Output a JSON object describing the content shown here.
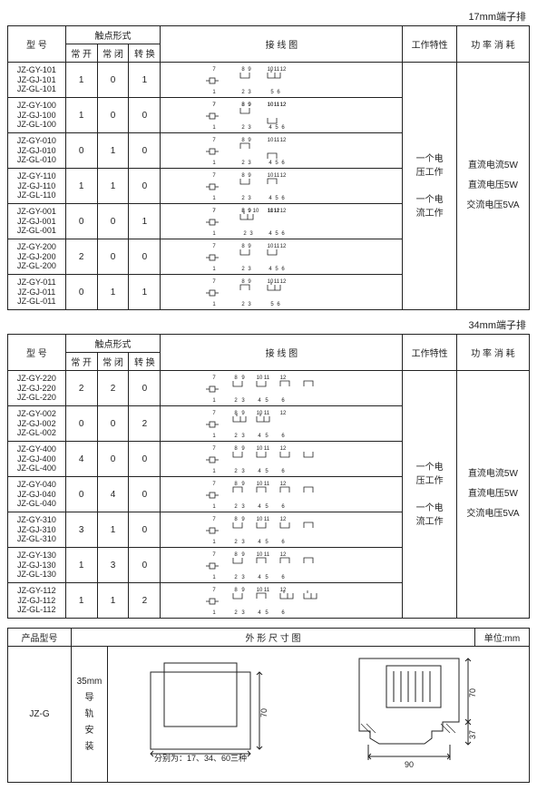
{
  "captions": {
    "top": "17mm端子排",
    "mid": "34mm端子排"
  },
  "headers": {
    "model": "型 号",
    "contact_form": "触点形式",
    "no": "常 开",
    "nc": "常 闭",
    "co": "转 换",
    "wiring": "接  线  图",
    "work": "工作特性",
    "power": "功 率 消 耗"
  },
  "work_char": [
    "一个电",
    "压工作",
    "",
    "一个电",
    "流工作"
  ],
  "power_cons": [
    "直流电流5W",
    "直流电压5W",
    "交流电压5VA"
  ],
  "table1_rows": [
    {
      "models": [
        "JZ-GY-101",
        "JZ-GJ-101",
        "JZ-GL-101"
      ],
      "no": "1",
      "nc": "0",
      "co": "1",
      "diag": "A"
    },
    {
      "models": [
        "JZ-GY-100",
        "JZ-GJ-100",
        "JZ-GL-100"
      ],
      "no": "1",
      "nc": "0",
      "co": "0",
      "diag": "B"
    },
    {
      "models": [
        "JZ-GY-010",
        "JZ-GJ-010",
        "JZ-GL-010"
      ],
      "no": "0",
      "nc": "1",
      "co": "0",
      "diag": "C"
    },
    {
      "models": [
        "JZ-GY-110",
        "JZ-GJ-110",
        "JZ-GL-110"
      ],
      "no": "1",
      "nc": "1",
      "co": "0",
      "diag": "D"
    },
    {
      "models": [
        "JZ-GY-001",
        "JZ-GJ-001",
        "JZ-GL-001"
      ],
      "no": "0",
      "nc": "0",
      "co": "1",
      "diag": "E"
    },
    {
      "models": [
        "JZ-GY-200",
        "JZ-GJ-200",
        "JZ-GL-200"
      ],
      "no": "2",
      "nc": "0",
      "co": "0",
      "diag": "F"
    },
    {
      "models": [
        "JZ-GY-011",
        "JZ-GJ-011",
        "JZ-GL-011"
      ],
      "no": "0",
      "nc": "1",
      "co": "1",
      "diag": "G"
    }
  ],
  "table2_rows": [
    {
      "models": [
        "JZ-GY-220",
        "JZ-GJ-220",
        "JZ-GL-220"
      ],
      "no": "2",
      "nc": "2",
      "co": "0",
      "diag": "H"
    },
    {
      "models": [
        "JZ-GY-002",
        "JZ-GJ-002",
        "JZ-GL-002"
      ],
      "no": "0",
      "nc": "0",
      "co": "2",
      "diag": "I"
    },
    {
      "models": [
        "JZ-GY-400",
        "JZ-GJ-400",
        "JZ-GL-400"
      ],
      "no": "4",
      "nc": "0",
      "co": "0",
      "diag": "J"
    },
    {
      "models": [
        "JZ-GY-040",
        "JZ-GJ-040",
        "JZ-GL-040"
      ],
      "no": "0",
      "nc": "4",
      "co": "0",
      "diag": "K"
    },
    {
      "models": [
        "JZ-GY-310",
        "JZ-GJ-310",
        "JZ-GL-310"
      ],
      "no": "3",
      "nc": "1",
      "co": "0",
      "diag": "L"
    },
    {
      "models": [
        "JZ-GY-130",
        "JZ-GJ-130",
        "JZ-GL-130"
      ],
      "no": "1",
      "nc": "3",
      "co": "0",
      "diag": "M"
    },
    {
      "models": [
        "JZ-GY-112",
        "JZ-GJ-112",
        "JZ-GL-112"
      ],
      "no": "1",
      "nc": "1",
      "co": "2",
      "diag": "N"
    }
  ],
  "dim_headers": {
    "model": "产品型号",
    "drawing": "外 形 尺 寸 图",
    "unit": "单位:mm"
  },
  "dim_row": {
    "model": "JZ-G",
    "mount_label": "35mm",
    "mount_text": [
      "导",
      "轨",
      "安",
      "装"
    ],
    "front_height": "70",
    "front_note": "分别为：17、34、60三种",
    "side_height": "70",
    "side_depth": "37",
    "side_width": "90"
  },
  "colors": {
    "line": "#222222",
    "bg": "#ffffff"
  }
}
